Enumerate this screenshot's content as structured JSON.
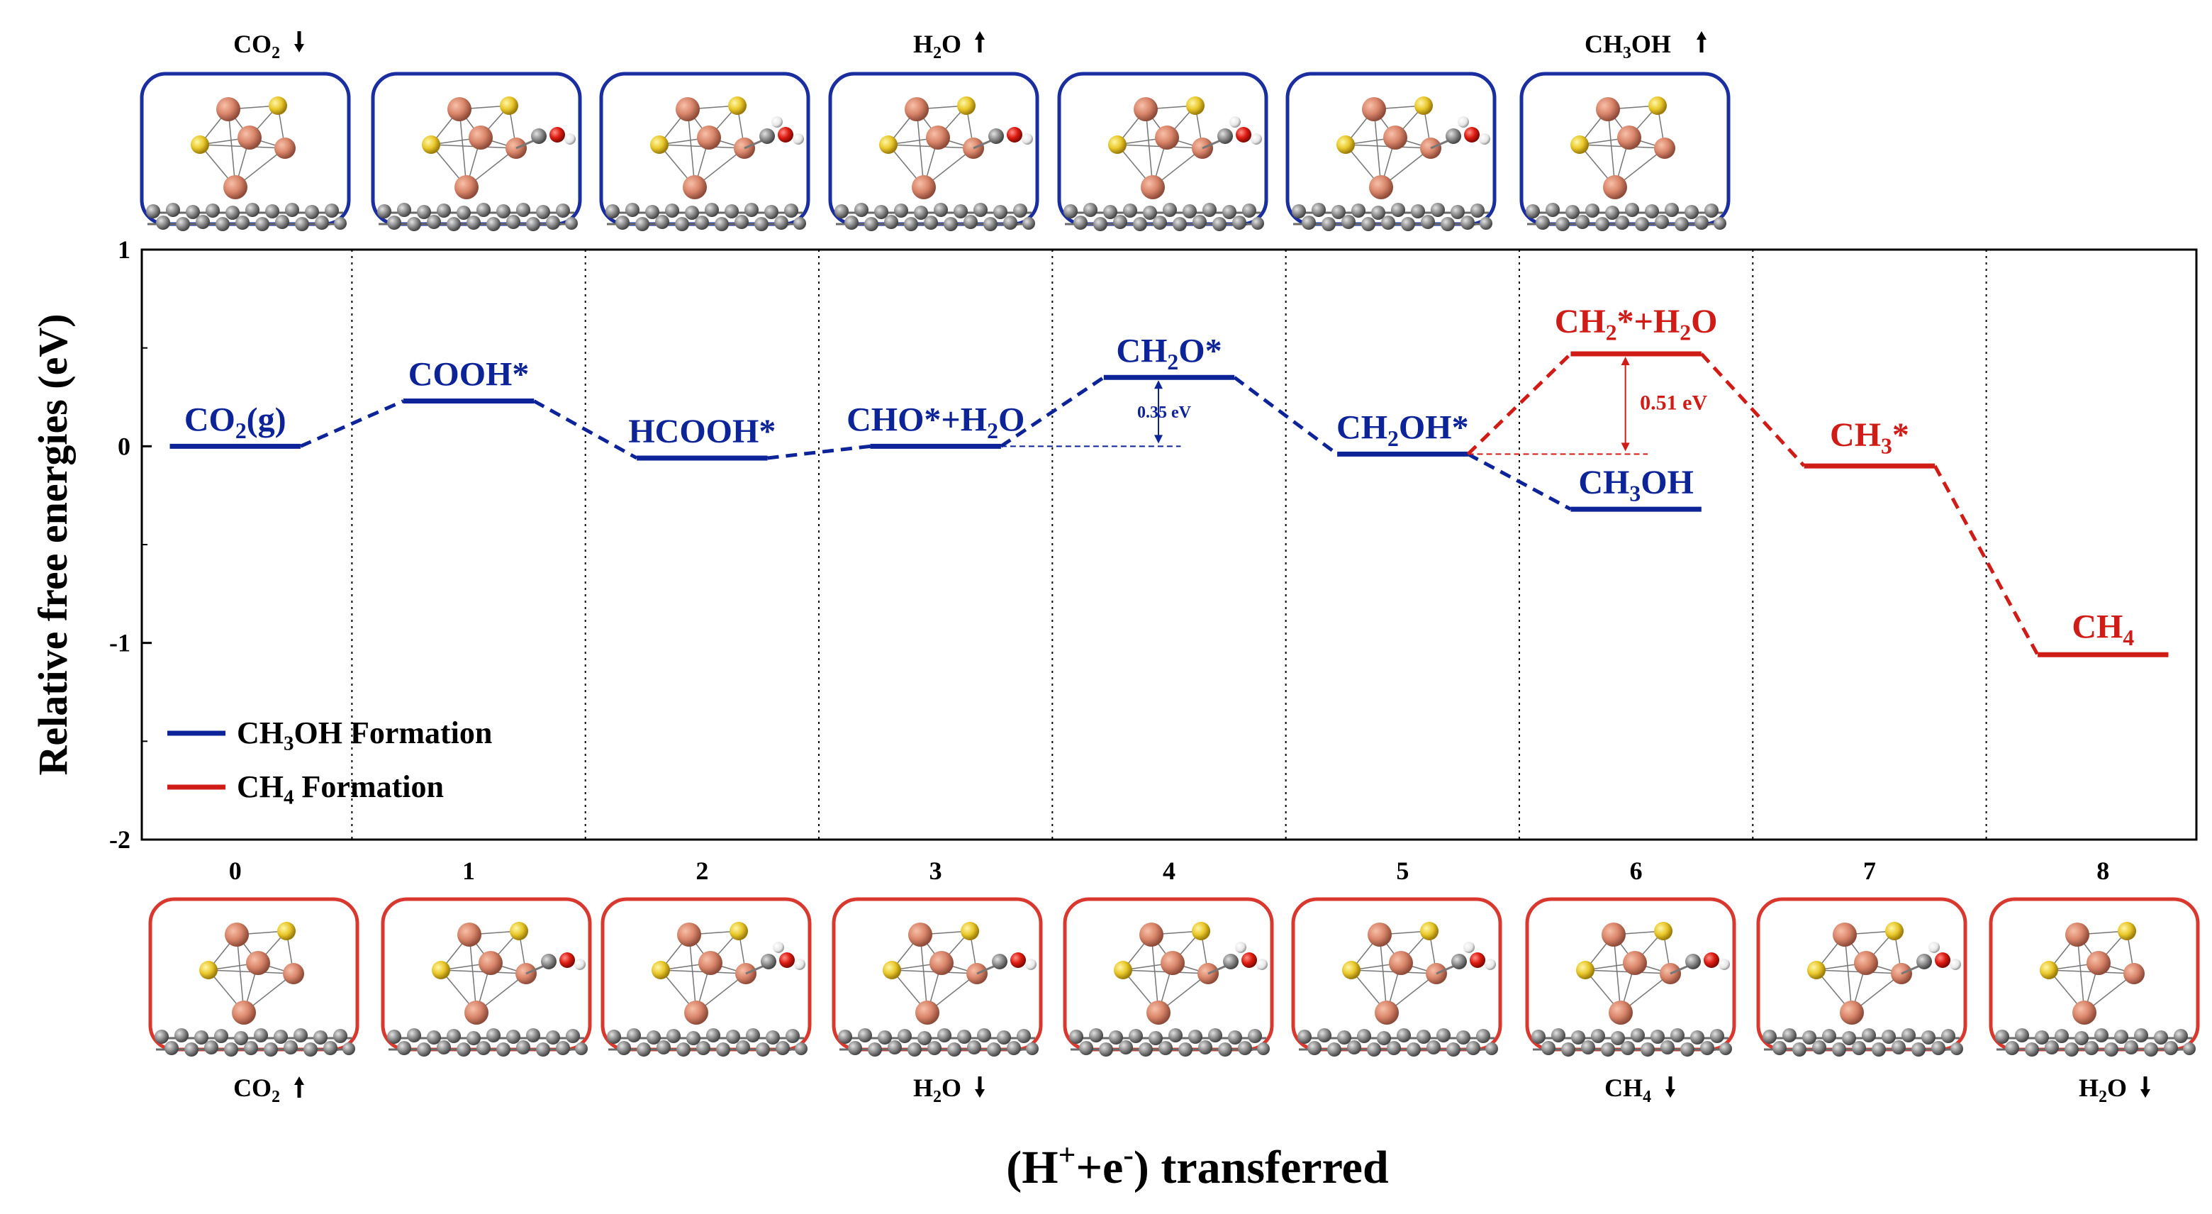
{
  "chart_data": {
    "type": "line",
    "title": "",
    "xlabel": "(H⁺+e⁻) transferred",
    "ylabel": "Relative free energies (eV)",
    "xlim": [
      -0.4,
      8.4
    ],
    "ylim": [
      -2,
      1
    ],
    "xticks": [
      "0",
      "1",
      "2",
      "3",
      "4",
      "5",
      "6",
      "7",
      "8"
    ],
    "yticks": [
      "1",
      "0",
      "-1",
      "-2"
    ],
    "colors": {
      "ch3oh": "#0d2499",
      "ch4": "#d01c17",
      "axis": "#000000",
      "grid": "#000000"
    },
    "series": [
      {
        "key": "ch3oh",
        "name": "CH₃OH Formation",
        "levels": [
          {
            "x": 0,
            "y": 0.0,
            "label": "CO₂(g)"
          },
          {
            "x": 1,
            "y": 0.23,
            "label": "COOH*"
          },
          {
            "x": 2,
            "y": -0.06,
            "label": "HCOOH*"
          },
          {
            "x": 3,
            "y": 0.0,
            "label": "CHO*+H₂O"
          },
          {
            "x": 4,
            "y": 0.35,
            "label": "CH₂O*"
          },
          {
            "x": 5,
            "y": -0.04,
            "label": "CH₂OH*"
          },
          {
            "x": 6,
            "y": -0.32,
            "label": "CH₃OH"
          }
        ]
      },
      {
        "key": "ch4",
        "name": "CH₄ Formation",
        "levels": [
          {
            "x": 5,
            "y": -0.04,
            "label": ""
          },
          {
            "x": 6,
            "y": 0.47,
            "label": "CH₂*+H₂O"
          },
          {
            "x": 7,
            "y": -0.1,
            "label": "CH₃*"
          },
          {
            "x": 8,
            "y": -1.06,
            "label": "CH₄"
          }
        ]
      }
    ],
    "annotations": [
      {
        "text": "0.35 eV",
        "x": 4,
        "y_from": 0.0,
        "y_to": 0.35,
        "series": "ch3oh"
      },
      {
        "text": "0.51 eV",
        "x": 6,
        "y_from": -0.04,
        "y_to": 0.47,
        "series": "ch4"
      }
    ],
    "top_labels": [
      {
        "x": 0,
        "text": "CO₂",
        "arrow": "down"
      },
      {
        "x": 3,
        "text": "H₂O",
        "arrow": "up"
      },
      {
        "x": 6,
        "text": "CH₃OH",
        "arrow": "up"
      }
    ],
    "bottom_labels": [
      {
        "x": 0,
        "text": "CO₂",
        "arrow": "up"
      },
      {
        "x": 3,
        "text": "H₂O",
        "arrow": "down"
      },
      {
        "x": 6,
        "text": "CH₄",
        "arrow": "down"
      },
      {
        "x": 8,
        "text": "H₂O",
        "arrow": "down"
      }
    ],
    "top_structure_count": 7,
    "bottom_structure_count": 9
  }
}
